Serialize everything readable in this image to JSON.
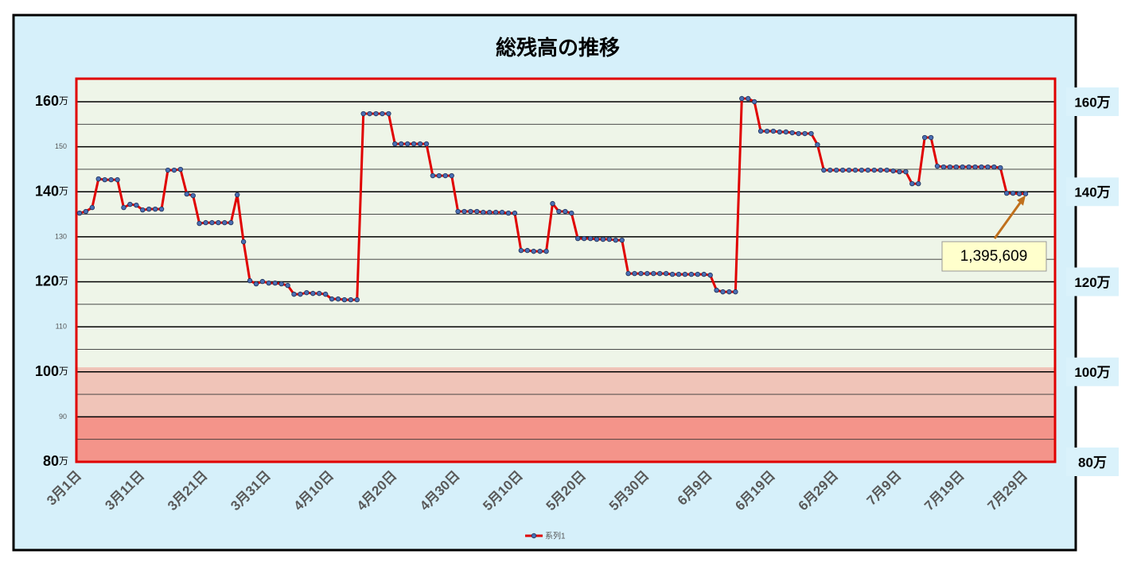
{
  "chart_data": {
    "type": "line",
    "title": "総残高の推移",
    "categories": [
      "3月1日",
      null,
      null,
      null,
      null,
      null,
      null,
      null,
      null,
      null,
      "3月11日",
      null,
      null,
      null,
      null,
      null,
      null,
      null,
      null,
      null,
      "3月21日",
      null,
      null,
      null,
      null,
      null,
      null,
      null,
      null,
      null,
      "3月31日",
      null,
      null,
      null,
      null,
      null,
      null,
      null,
      null,
      null,
      "4月10日",
      null,
      null,
      null,
      null,
      null,
      null,
      null,
      null,
      null,
      "4月20日",
      null,
      null,
      null,
      null,
      null,
      null,
      null,
      null,
      null,
      "4月30日",
      null,
      null,
      null,
      null,
      null,
      null,
      null,
      null,
      null,
      "5月10日",
      null,
      null,
      null,
      null,
      null,
      null,
      null,
      null,
      null,
      "5月20日",
      null,
      null,
      null,
      null,
      null,
      null,
      null,
      null,
      null,
      "5月30日",
      null,
      null,
      null,
      null,
      null,
      null,
      null,
      null,
      null,
      "6月9日",
      null,
      null,
      null,
      null,
      null,
      null,
      null,
      null,
      null,
      "6月19日",
      null,
      null,
      null,
      null,
      null,
      null,
      null,
      null,
      null,
      "6月29日",
      null,
      null,
      null,
      null,
      null,
      null,
      null,
      null,
      null,
      "7月9日",
      null,
      null,
      null,
      null,
      null,
      null,
      null,
      null,
      null,
      "7月19日",
      null,
      null,
      null,
      null,
      null,
      null,
      null,
      null,
      null,
      "7月29日"
    ],
    "series": [
      {
        "name": "系列1",
        "color": "#e00000",
        "marker_color": "#4a6fb5",
        "values": [
          1352600,
          1356200,
          1365000,
          1428600,
          1426800,
          1426800,
          1426800,
          1365000,
          1372100,
          1370300,
          1359700,
          1361500,
          1361500,
          1361500,
          1448100,
          1448100,
          1449800,
          1395000,
          1391500,
          1329700,
          1331400,
          1331400,
          1331400,
          1331400,
          1331400,
          1393300,
          1289000,
          1202500,
          1195400,
          1200700,
          1197200,
          1197200,
          1195400,
          1191900,
          1172400,
          1172400,
          1175900,
          1174200,
          1174200,
          1172400,
          1161800,
          1161800,
          1160100,
          1160100,
          1160100,
          1573500,
          1573500,
          1573500,
          1573500,
          1573500,
          1506400,
          1506400,
          1506400,
          1506400,
          1506400,
          1506400,
          1435700,
          1435700,
          1435700,
          1435700,
          1356200,
          1356200,
          1356200,
          1356200,
          1354400,
          1354400,
          1354400,
          1354400,
          1352600,
          1352600,
          1269600,
          1269600,
          1267800,
          1267800,
          1267800,
          1373800,
          1356200,
          1356200,
          1352600,
          1296100,
          1296100,
          1296100,
          1294400,
          1294400,
          1294400,
          1292600,
          1292600,
          1218400,
          1218400,
          1218400,
          1218400,
          1218400,
          1218400,
          1218400,
          1216600,
          1216600,
          1216600,
          1216600,
          1216600,
          1216600,
          1214800,
          1181300,
          1177700,
          1177700,
          1177700,
          1607100,
          1607100,
          1600000,
          1534600,
          1534600,
          1534600,
          1532900,
          1532900,
          1531100,
          1529300,
          1529300,
          1529300,
          1504600,
          1448100,
          1448100,
          1448100,
          1448100,
          1448100,
          1448100,
          1448100,
          1448100,
          1448100,
          1448100,
          1448100,
          1446300,
          1444500,
          1444500,
          1418000,
          1418000,
          1520500,
          1520500,
          1456900,
          1455100,
          1455100,
          1455100,
          1455100,
          1455100,
          1455100,
          1455100,
          1455100,
          1455100,
          1453400,
          1396800,
          1396800,
          1395609,
          1395609
        ]
      }
    ],
    "ylim": [
      800000,
      1650000
    ],
    "y_unit": "万",
    "yticks": [
      {
        "value": 800000,
        "label": "80"
      },
      {
        "value": 1000000,
        "label": "100"
      },
      {
        "value": 1200000,
        "label": "120"
      },
      {
        "value": 1400000,
        "label": "140"
      },
      {
        "value": 1600000,
        "label": "160"
      }
    ],
    "minor_yticks": [
      {
        "value": 900000,
        "label": "90"
      },
      {
        "value": 1100000,
        "label": "110"
      },
      {
        "value": 1300000,
        "label": "130"
      },
      {
        "value": 1500000,
        "label": "150"
      }
    ],
    "minor_gridlines": [
      850000,
      950000,
      1050000,
      1150000,
      1250000,
      1350000,
      1450000,
      1550000
    ],
    "y2lim": [
      800000,
      1650000
    ],
    "y2ticks": [
      {
        "value": 800000,
        "label": "80万"
      },
      {
        "value": 1000000,
        "label": "100万"
      },
      {
        "value": 1200000,
        "label": "120万"
      },
      {
        "value": 1400000,
        "label": "140万"
      },
      {
        "value": 1600000,
        "label": "160万"
      }
    ],
    "bands": [
      {
        "from": 800000,
        "to": 1010000,
        "color": "#f0c4b8"
      },
      {
        "from": 800000,
        "to": 900000,
        "color": "#f4948a"
      }
    ],
    "annotation": {
      "text": "1,395,609"
    },
    "grid": true,
    "legend": "bottom"
  }
}
